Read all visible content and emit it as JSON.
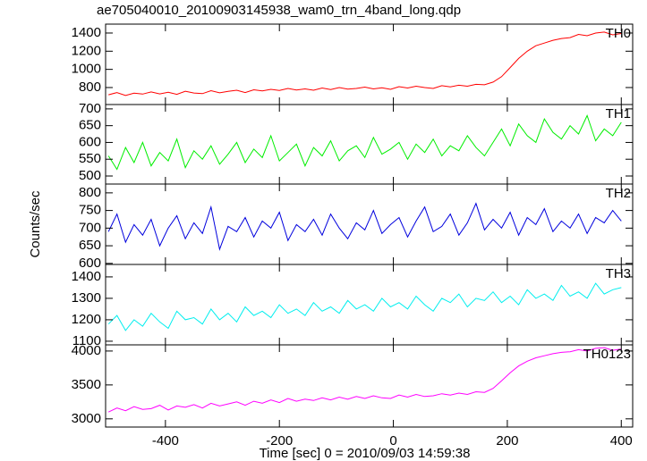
{
  "chart_data": [
    {
      "type": "line",
      "title": "ae705040010_20100903145938_wam0_trn_4band_long.qdp",
      "label": "TH0",
      "color": "#ff0000",
      "x": [
        -500,
        -485,
        -470,
        -455,
        -440,
        -425,
        -410,
        -395,
        -380,
        -365,
        -350,
        -335,
        -320,
        -305,
        -290,
        -275,
        -260,
        -245,
        -230,
        -215,
        -200,
        -185,
        -170,
        -155,
        -140,
        -125,
        -110,
        -95,
        -80,
        -65,
        -50,
        -35,
        -20,
        -5,
        10,
        25,
        40,
        55,
        70,
        85,
        100,
        115,
        130,
        145,
        160,
        175,
        190,
        205,
        220,
        235,
        250,
        265,
        280,
        295,
        310,
        325,
        340,
        355,
        370,
        385,
        400
      ],
      "values": [
        720,
        745,
        712,
        738,
        728,
        752,
        730,
        748,
        725,
        760,
        740,
        733,
        765,
        742,
        758,
        770,
        745,
        775,
        762,
        780,
        768,
        790,
        772,
        785,
        770,
        795,
        778,
        800,
        782,
        790,
        805,
        785,
        798,
        780,
        810,
        795,
        815,
        800,
        790,
        820,
        808,
        825,
        815,
        835,
        830,
        860,
        920,
        1020,
        1120,
        1200,
        1260,
        1290,
        1320,
        1340,
        1350,
        1385,
        1370,
        1400,
        1410,
        1380,
        1395
      ],
      "xlim": [
        -505,
        420
      ],
      "ylim": [
        613,
        1498
      ],
      "yticks": [
        800,
        1000,
        1200,
        1400
      ]
    },
    {
      "type": "line",
      "label": "TH1",
      "color": "#00ee00",
      "x": [
        -500,
        -485,
        -470,
        -455,
        -440,
        -425,
        -410,
        -395,
        -380,
        -365,
        -350,
        -335,
        -320,
        -305,
        -290,
        -275,
        -260,
        -245,
        -230,
        -215,
        -200,
        -185,
        -170,
        -155,
        -140,
        -125,
        -110,
        -95,
        -80,
        -65,
        -50,
        -35,
        -20,
        -5,
        10,
        25,
        40,
        55,
        70,
        85,
        100,
        115,
        130,
        145,
        160,
        175,
        190,
        205,
        220,
        235,
        250,
        265,
        280,
        295,
        310,
        325,
        340,
        355,
        370,
        385,
        400
      ],
      "values": [
        560,
        520,
        585,
        540,
        600,
        530,
        570,
        545,
        610,
        525,
        575,
        550,
        590,
        535,
        565,
        600,
        540,
        580,
        555,
        620,
        545,
        570,
        595,
        530,
        585,
        560,
        605,
        545,
        575,
        590,
        555,
        615,
        565,
        580,
        600,
        550,
        595,
        570,
        610,
        560,
        590,
        575,
        620,
        585,
        560,
        600,
        640,
        590,
        655,
        620,
        600,
        670,
        630,
        610,
        650,
        625,
        680,
        605,
        640,
        620,
        660
      ],
      "xlim": [
        -505,
        420
      ],
      "ylim": [
        476,
        713
      ],
      "yticks": [
        500,
        550,
        600,
        650,
        700
      ]
    },
    {
      "type": "line",
      "label": "TH2",
      "color": "#0000dd",
      "ylabel": "Counts/sec",
      "x": [
        -500,
        -485,
        -470,
        -455,
        -440,
        -425,
        -410,
        -395,
        -380,
        -365,
        -350,
        -335,
        -320,
        -305,
        -290,
        -275,
        -260,
        -245,
        -230,
        -215,
        -200,
        -185,
        -170,
        -155,
        -140,
        -125,
        -110,
        -95,
        -80,
        -65,
        -50,
        -35,
        -20,
        -5,
        10,
        25,
        40,
        55,
        70,
        85,
        100,
        115,
        130,
        145,
        160,
        175,
        190,
        205,
        220,
        235,
        250,
        265,
        280,
        295,
        310,
        325,
        340,
        355,
        370,
        385,
        400
      ],
      "values": [
        690,
        740,
        660,
        710,
        680,
        725,
        650,
        700,
        735,
        670,
        715,
        685,
        760,
        640,
        705,
        690,
        730,
        675,
        720,
        700,
        745,
        665,
        710,
        690,
        725,
        680,
        740,
        700,
        670,
        715,
        695,
        750,
        685,
        710,
        730,
        675,
        720,
        760,
        690,
        705,
        740,
        680,
        715,
        770,
        695,
        725,
        700,
        745,
        680,
        730,
        710,
        755,
        690,
        720,
        700,
        740,
        685,
        730,
        715,
        750,
        720
      ],
      "xlim": [
        -505,
        420
      ],
      "ylim": [
        597,
        825
      ],
      "yticks": [
        600,
        650,
        700,
        750,
        800
      ]
    },
    {
      "type": "line",
      "label": "TH3",
      "color": "#00eeee",
      "x": [
        -500,
        -485,
        -470,
        -455,
        -440,
        -425,
        -410,
        -395,
        -380,
        -365,
        -350,
        -335,
        -320,
        -305,
        -290,
        -275,
        -260,
        -245,
        -230,
        -215,
        -200,
        -185,
        -170,
        -155,
        -140,
        -125,
        -110,
        -95,
        -80,
        -65,
        -50,
        -35,
        -20,
        -5,
        10,
        25,
        40,
        55,
        70,
        85,
        100,
        115,
        130,
        145,
        160,
        175,
        190,
        205,
        220,
        235,
        250,
        265,
        280,
        295,
        310,
        325,
        340,
        355,
        370,
        385,
        400
      ],
      "values": [
        1180,
        1220,
        1150,
        1200,
        1170,
        1230,
        1190,
        1160,
        1240,
        1200,
        1210,
        1180,
        1250,
        1200,
        1230,
        1190,
        1260,
        1220,
        1240,
        1210,
        1270,
        1230,
        1250,
        1220,
        1280,
        1240,
        1260,
        1230,
        1290,
        1250,
        1270,
        1240,
        1300,
        1260,
        1280,
        1250,
        1310,
        1270,
        1240,
        1300,
        1280,
        1320,
        1260,
        1300,
        1290,
        1330,
        1280,
        1310,
        1270,
        1340,
        1300,
        1320,
        1290,
        1360,
        1310,
        1330,
        1300,
        1370,
        1320,
        1340,
        1350
      ],
      "xlim": [
        -505,
        420
      ],
      "ylim": [
        1083,
        1458
      ],
      "yticks": [
        1100,
        1200,
        1300,
        1400
      ]
    },
    {
      "type": "line",
      "label": "TH0123",
      "color": "#ff00ff",
      "xlabel": "Time [sec] 0 = 2010/09/03 14:59:38",
      "x": [
        -500,
        -485,
        -470,
        -455,
        -440,
        -425,
        -410,
        -395,
        -380,
        -365,
        -350,
        -335,
        -320,
        -305,
        -290,
        -275,
        -260,
        -245,
        -230,
        -215,
        -200,
        -185,
        -170,
        -155,
        -140,
        -125,
        -110,
        -95,
        -80,
        -65,
        -50,
        -35,
        -20,
        -5,
        10,
        25,
        40,
        55,
        70,
        85,
        100,
        115,
        130,
        145,
        160,
        175,
        190,
        205,
        220,
        235,
        250,
        265,
        280,
        295,
        310,
        325,
        340,
        355,
        370,
        385,
        400
      ],
      "values": [
        3100,
        3160,
        3120,
        3180,
        3140,
        3150,
        3200,
        3130,
        3190,
        3170,
        3210,
        3160,
        3230,
        3190,
        3220,
        3250,
        3200,
        3260,
        3230,
        3280,
        3240,
        3300,
        3260,
        3290,
        3270,
        3310,
        3280,
        3320,
        3290,
        3330,
        3300,
        3340,
        3310,
        3300,
        3350,
        3320,
        3360,
        3330,
        3340,
        3370,
        3350,
        3380,
        3360,
        3400,
        3390,
        3450,
        3560,
        3680,
        3780,
        3850,
        3900,
        3930,
        3960,
        3980,
        3990,
        4020,
        4000,
        4040,
        4050,
        4010,
        4030
      ],
      "xlim": [
        -505,
        420
      ],
      "ylim": [
        2879,
        4091
      ],
      "yticks": [
        3000,
        3500,
        4000
      ],
      "xticks": [
        -400,
        -200,
        0,
        200,
        400
      ]
    }
  ]
}
